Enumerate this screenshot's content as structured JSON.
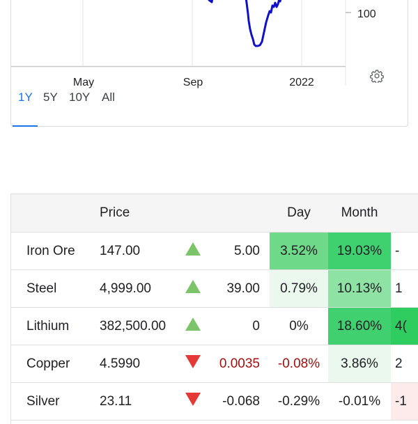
{
  "chart": {
    "y_label": "100",
    "x_labels": [
      "May",
      "Sep",
      "2022"
    ],
    "line_color": "#1010c8",
    "ranges": [
      {
        "label": "1Y",
        "active": true
      },
      {
        "label": "5Y",
        "active": false
      },
      {
        "label": "10Y",
        "active": false
      },
      {
        "label": "All",
        "active": false
      }
    ]
  },
  "table": {
    "headers": {
      "name": "",
      "price": "Price",
      "arrow": "",
      "change": "",
      "day": "Day",
      "month": "Month",
      "next": ""
    },
    "rows": [
      {
        "name": "Iron Ore",
        "price": "147.00",
        "direction": "up",
        "change": "5.00",
        "change_color": "default",
        "day": "3.52%",
        "day_bg": "#6fd98a",
        "day_color": "default",
        "month": "19.03%",
        "month_bg": "#3fd070",
        "next": "-",
        "next_bg": "#ffffff"
      },
      {
        "name": "Steel",
        "price": "4,999.00",
        "direction": "up",
        "change": "39.00",
        "change_color": "default",
        "day": "0.79%",
        "day_bg": "#eaf8ee",
        "day_color": "default",
        "month": "10.13%",
        "month_bg": "#8ee2a4",
        "next": "1",
        "next_bg": "#ffffff"
      },
      {
        "name": "Lithium",
        "price": "382,500.00",
        "direction": "up",
        "change": "0",
        "change_color": "default",
        "day": "0%",
        "day_bg": "#ffffff",
        "day_color": "default",
        "month": "18.60%",
        "month_bg": "#40d070",
        "next": "4(",
        "next_bg": "#2fcc5f"
      },
      {
        "name": "Copper",
        "price": "4.5990",
        "direction": "down",
        "change": "0.0035",
        "change_color": "#a50e0e",
        "day": "-0.08%",
        "day_bg": "#ffffff",
        "day_color": "#a50e0e",
        "month": "3.86%",
        "month_bg": "#eaf8ee",
        "next": "2",
        "next_bg": "#ffffff"
      },
      {
        "name": "Silver",
        "price": "23.11",
        "direction": "down",
        "change": "-0.068",
        "change_color": "default",
        "day": "-0.29%",
        "day_bg": "#ffffff",
        "day_color": "default",
        "month": "-0.01%",
        "month_bg": "#ffffff",
        "next": "-1",
        "next_bg": "#fdeaea"
      }
    ]
  }
}
